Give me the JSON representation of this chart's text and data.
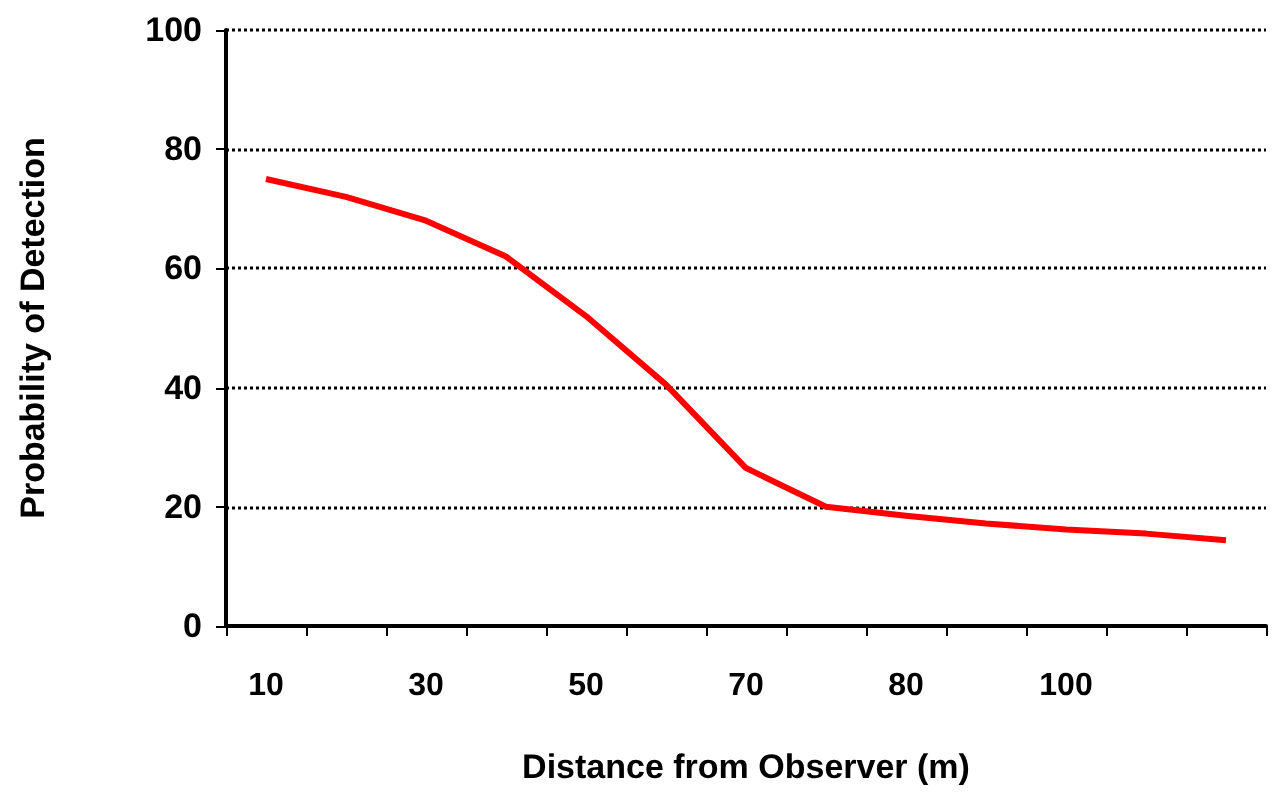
{
  "chart_data": {
    "type": "line",
    "xlabel": "Distance from Observer (m)",
    "ylabel": "Probability of Detection",
    "categories": [
      "10",
      null,
      "30",
      null,
      "50",
      null,
      "70",
      null,
      "80",
      null,
      "100",
      null,
      null
    ],
    "series": [
      {
        "color": "#ff0000",
        "values": [
          75,
          72,
          68,
          62,
          52,
          40.5,
          26.5,
          20,
          18.5,
          17.2,
          16.2,
          15.5,
          14.4
        ]
      }
    ],
    "ylim": [
      0,
      100
    ],
    "yticks": [
      0,
      20,
      40,
      60,
      80,
      100
    ],
    "grid": "y",
    "marker": "none",
    "line_style": "solid"
  }
}
